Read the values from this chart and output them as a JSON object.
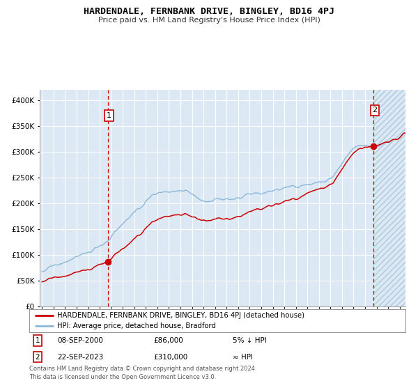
{
  "title": "HARDENDALE, FERNBANK DRIVE, BINGLEY, BD16 4PJ",
  "subtitle": "Price paid vs. HM Land Registry's House Price Index (HPI)",
  "legend_line1": "HARDENDALE, FERNBANK DRIVE, BINGLEY, BD16 4PJ (detached house)",
  "legend_line2": "HPI: Average price, detached house, Bradford",
  "annotation1_label": "1",
  "annotation1_date": "08-SEP-2000",
  "annotation1_price": "£86,000",
  "annotation1_rel": "5% ↓ HPI",
  "annotation2_label": "2",
  "annotation2_date": "22-SEP-2023",
  "annotation2_price": "£310,000",
  "annotation2_rel": "≈ HPI",
  "footnote": "Contains HM Land Registry data © Crown copyright and database right 2024.\nThis data is licensed under the Open Government Licence v3.0.",
  "sale1_year": 2000.69,
  "sale1_price": 86000,
  "sale2_year": 2023.72,
  "sale2_price": 310000,
  "bg_color": "#dce9f5",
  "hatch_color": "#adc8df",
  "grid_color": "#ffffff",
  "hpi_color": "#8bb8d8",
  "price_color": "#cc0000",
  "vline_color": "#cc0000",
  "ylim": [
    0,
    420000
  ],
  "xlim_start": 1994.8,
  "xlim_end": 2026.5
}
